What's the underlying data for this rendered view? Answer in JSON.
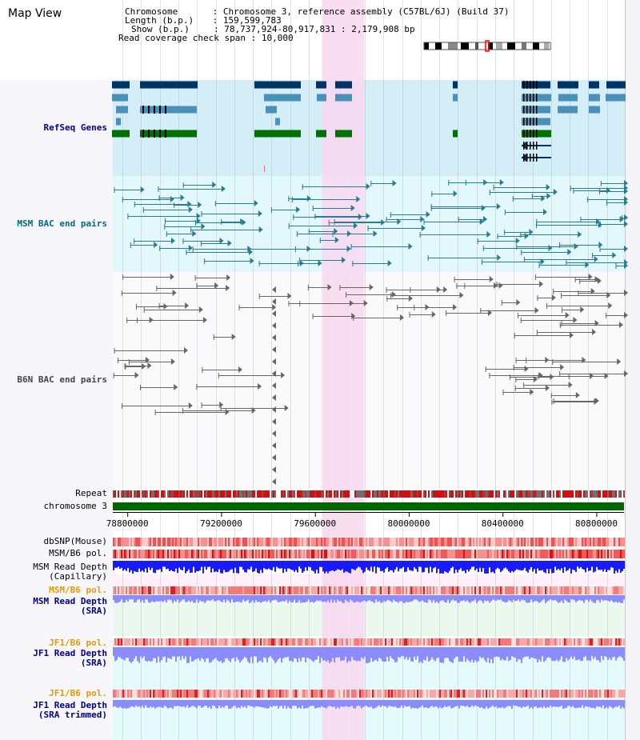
{
  "title": "Map View",
  "info": {
    "chromosome_key": "Chromosome",
    "chromosome_val": "Chromosome 3, reference assembly (C57BL/6J) (Build 37)",
    "length_key": "Length (b.p.)",
    "length_val": "159,599,783",
    "show_key": "Show (b.p.)",
    "show_val": "78,737,924-80,917,831 : 2,179,908 bp",
    "coverage_key": "Read coverage check span",
    "coverage_val": "10,000"
  },
  "tracks": {
    "refseq": "RefSeq Genes",
    "msm_bac": "MSM BAC end pairs",
    "b6n_bac": "B6N BAC end pairs",
    "repeat": "Repeat",
    "chromosome": "chromosome 3",
    "dbsnp": "dbSNP(Mouse)",
    "msm_pol_1": "MSM/B6 pol.",
    "msm_depth_cap_1": "MSM Read Depth",
    "msm_depth_cap_2": "(Capillary)",
    "msm_pol_2": "MSM/B6 pol.",
    "msm_depth_sra_1": "MSM Read Depth",
    "msm_depth_sra_2": "(SRA)",
    "jf1_pol_1": "JF1/B6 pol.",
    "jf1_depth_sra_1": "JF1 Read Depth",
    "jf1_depth_sra_2": "(SRA)",
    "jf1_pol_2": "JF1/B6 pol.",
    "jf1_depth_trim_1": "JF1 Read Depth",
    "jf1_depth_trim_2": "(SRA trimmed)"
  },
  "axis": {
    "ticks": [
      "78800000",
      "79200000",
      "79600000",
      "80000000",
      "80400000",
      "80800000"
    ],
    "tick_values": [
      78800000,
      79200000,
      79600000,
      80000000,
      80400000,
      80800000
    ],
    "range": [
      78737924,
      80917831
    ]
  },
  "highlight": {
    "start": 79630000,
    "end": 79810000
  },
  "colors": {
    "refseq_bg": "#d4eef8",
    "msm_bg": "#e2f8fa",
    "highlight": "#f8d8f0",
    "gene_dark": "#003366",
    "gene_mid": "#4a90b8",
    "gene_green": "#007000",
    "bac_teal": "#2a7a90",
    "bac_gray": "#666666",
    "chromosome": "#006600",
    "depth_blue": "#1a1aff",
    "depth_light": "#8c8cff",
    "pol_red": "#f04040"
  }
}
